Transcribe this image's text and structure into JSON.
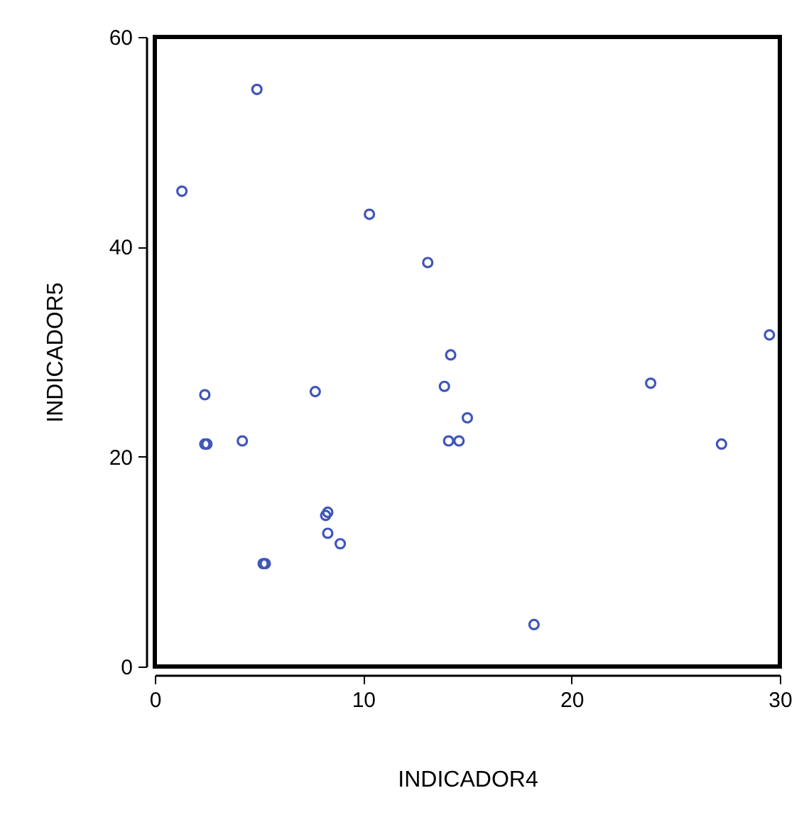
{
  "chart_data": {
    "type": "scatter",
    "xlabel": "INDICADOR4",
    "ylabel": "INDICADOR5",
    "xlim": [
      0,
      30
    ],
    "ylim": [
      0,
      60
    ],
    "xticks": [
      0,
      10,
      20,
      30
    ],
    "yticks": [
      0,
      20,
      40,
      60
    ],
    "grid": false,
    "marker": "circle",
    "series": [
      {
        "color": "#3f56b8",
        "x": [
          4.9,
          1.3,
          10.3,
          13.1,
          14.2,
          13.9,
          15.0,
          14.1,
          14.6,
          2.4,
          7.7,
          2.4,
          2.5,
          4.2,
          8.2,
          8.3,
          8.3,
          8.9,
          5.2,
          5.3,
          18.2,
          23.8,
          27.2,
          29.5
        ],
        "values": [
          55,
          45.3,
          43.1,
          38.5,
          29.7,
          26.7,
          23.7,
          21.5,
          21.5,
          25.9,
          26.2,
          21.2,
          21.2,
          21.5,
          14.4,
          14.7,
          12.7,
          11.7,
          9.8,
          9.8,
          4.0,
          27.0,
          21.2,
          31.6
        ]
      }
    ]
  }
}
